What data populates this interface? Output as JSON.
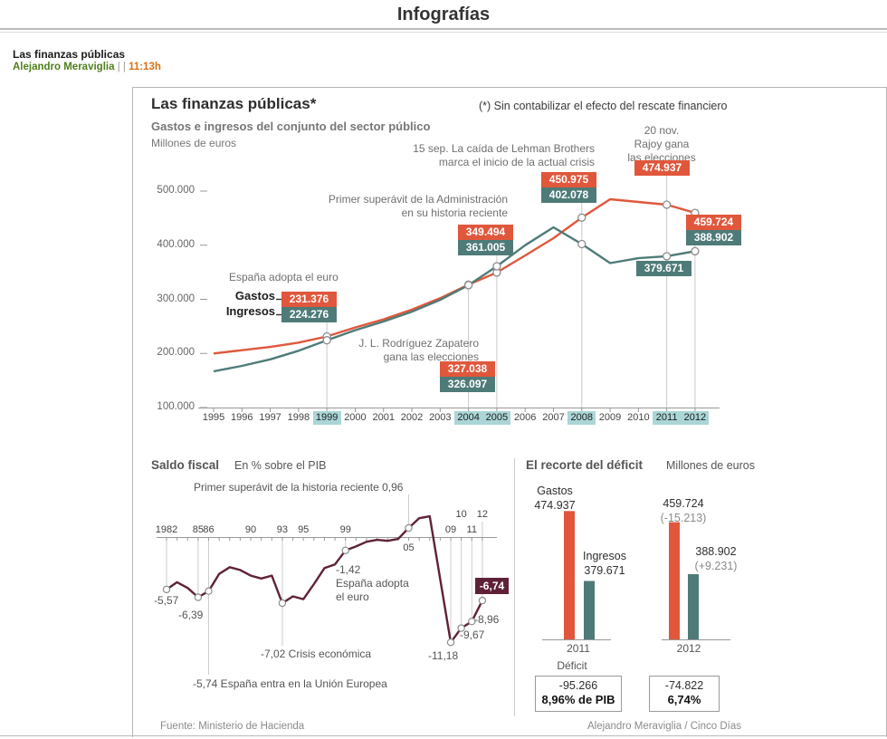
{
  "page": {
    "title": "Infografías"
  },
  "article": {
    "title": "Las finanzas públicas",
    "author": "Alejandro Meraviglia",
    "separator": "| |",
    "time": "11:13h"
  },
  "infographic": {
    "title": "Las finanzas públicas*",
    "note": "(*) Sin contabilizar el efecto del rescate financiero",
    "subtitle": "Gastos e ingresos del conjunto del sector público",
    "unit": "Millones de euros",
    "source": "Fuente: Ministerio de Hacienda",
    "credit": "Alejandro Meraviglia / Cinco Días"
  },
  "colors": {
    "gastos": "#e0573c",
    "ingresos": "#4e7b78",
    "saldo": "#5f2138",
    "highlight": "#abd5d6",
    "author_green": "#4f7f1c",
    "time_orange": "#dd6f12"
  },
  "main_annotations": {
    "euro": "España adopta el euro",
    "zapatero": "J. L. Rodríguez Zapatero\ngana las elecciones",
    "superavit": "Primer superávit de la Administración\nen su historia reciente",
    "lehman": "15 sep. La caída de Lehman Brothers\nmarca el inicio de la actual crisis",
    "rajoy": "20 nov.\nRajoy gana\nlas elecciones"
  },
  "legend": {
    "gastos": "Gastos",
    "ingresos": "Ingresos"
  },
  "saldo": {
    "title": "Saldo fiscal",
    "subtitle": "En % sobre el PIB",
    "superavit_note": "Primer superávit de la historia reciente 0,96",
    "euro_note": "-1,42\nEspaña adopta\nel euro",
    "crisis_note": "-7,02 Crisis económica",
    "ue_note": "-5,74 España entra en la Unión Europea",
    "labels": {
      "v1982": "-5,57",
      "v1985": "-6,39",
      "v2009": "-11,18",
      "v2010": "-9,67",
      "v2011": "-8,96",
      "v2012": "-6,74"
    }
  },
  "recorte": {
    "title": "El recorte del déficit",
    "unit": "Millones de euros",
    "deficit_label": "Déficit",
    "g2011": {
      "year": "2011",
      "gastos_name": "Gastos",
      "gastos_value": "474.937",
      "ingresos_name": "Ingresos",
      "ingresos_value": "379.671",
      "deficit": "-95.266",
      "deficit_pct": "8,96% de PIB"
    },
    "g2012": {
      "year": "2012",
      "gastos_value": "459.724",
      "gastos_delta": "(-15.213)",
      "ingresos_value": "388.902",
      "ingresos_delta": "(+9.231)",
      "deficit": "-74.822",
      "deficit_pct": "6,74%"
    }
  },
  "chart_data": [
    {
      "type": "line",
      "title": "Gastos e ingresos del conjunto del sector público",
      "ylabel": "Millones de euros",
      "ylim": [
        100000,
        500000
      ],
      "y_ticks": [
        "500.000",
        "400.000",
        "300.000",
        "200.000",
        "100.000"
      ],
      "x": [
        1995,
        1996,
        1997,
        1998,
        1999,
        2000,
        2001,
        2002,
        2003,
        2004,
        2005,
        2006,
        2007,
        2008,
        2009,
        2010,
        2011,
        2012
      ],
      "highlighted_years": [
        1999,
        2004,
        2005,
        2008,
        2011,
        2012
      ],
      "series": [
        {
          "name": "Gastos",
          "color": "#e0573c",
          "values": [
            200000,
            206000,
            212000,
            220000,
            231376,
            248000,
            263000,
            281000,
            302000,
            327038,
            349494,
            381000,
            413000,
            450975,
            485000,
            480000,
            474937,
            459724
          ]
        },
        {
          "name": "Ingresos",
          "color": "#4e7b78",
          "values": [
            167000,
            177000,
            189000,
            205000,
            224276,
            243000,
            259000,
            277000,
            299000,
            326097,
            361005,
            400000,
            433000,
            402078,
            367000,
            376000,
            379671,
            388902
          ]
        }
      ],
      "callouts": [
        {
          "year": 1999,
          "gastos": "231.376",
          "ingresos": "224.276"
        },
        {
          "year": 2004,
          "gastos": "327.038",
          "ingresos": "326.097"
        },
        {
          "year": 2005,
          "gastos": "349.494",
          "ingresos": "361.005"
        },
        {
          "year": 2008,
          "gastos": "450.975",
          "ingresos": "402.078"
        },
        {
          "year": 2011,
          "gastos": "474.937",
          "ingresos": "379.671"
        },
        {
          "year": 2012,
          "gastos": "459.724",
          "ingresos": "388.902"
        }
      ]
    },
    {
      "type": "line",
      "title": "Saldo fiscal",
      "subtitle": "En % sobre el PIB",
      "x": [
        1982,
        1983,
        1984,
        1985,
        1986,
        1987,
        1988,
        1989,
        1990,
        1991,
        1992,
        1993,
        1994,
        1995,
        1996,
        1997,
        1998,
        1999,
        2000,
        2001,
        2002,
        2003,
        2004,
        2005,
        2006,
        2007,
        2008,
        2009,
        2010,
        2011,
        2012
      ],
      "values": [
        -5.57,
        -4.8,
        -5.4,
        -6.39,
        -5.74,
        -3.9,
        -3.2,
        -3.5,
        -4.1,
        -4.4,
        -4.1,
        -7.02,
        -6.3,
        -6.6,
        -5.0,
        -3.3,
        -2.9,
        -1.42,
        -1.0,
        -0.5,
        -0.3,
        -0.4,
        -0.2,
        0.96,
        2.0,
        2.2,
        -4.5,
        -11.18,
        -9.67,
        -8.96,
        -6.74
      ],
      "dot_years": [
        1982,
        1985,
        1986,
        1993,
        1999,
        2005,
        2009,
        2010,
        2011,
        2012
      ],
      "axis_labels": [
        {
          "year": 1982,
          "text": "1982",
          "pos": "above"
        },
        {
          "year": 1985,
          "text": "85",
          "pos": "above"
        },
        {
          "year": 1986,
          "text": "86",
          "pos": "above"
        },
        {
          "year": 1990,
          "text": "90",
          "pos": "above"
        },
        {
          "year": 1993,
          "text": "93",
          "pos": "above"
        },
        {
          "year": 1995,
          "text": "95",
          "pos": "above"
        },
        {
          "year": 1999,
          "text": "99",
          "pos": "above"
        },
        {
          "year": 2005,
          "text": "05",
          "pos": "below"
        },
        {
          "year": 2009,
          "text": "09",
          "pos": "above"
        },
        {
          "year": 2010,
          "text": "10",
          "pos": "high"
        },
        {
          "year": 2011,
          "text": "11",
          "pos": "above"
        },
        {
          "year": 2012,
          "text": "12",
          "pos": "high"
        }
      ]
    },
    {
      "type": "bar",
      "title": "El recorte del déficit",
      "unit": "Millones de euros",
      "groups": [
        {
          "year": "2011",
          "gastos": 474937,
          "ingresos": 379671
        },
        {
          "year": "2012",
          "gastos": 459724,
          "ingresos": 388902
        }
      ]
    }
  ]
}
